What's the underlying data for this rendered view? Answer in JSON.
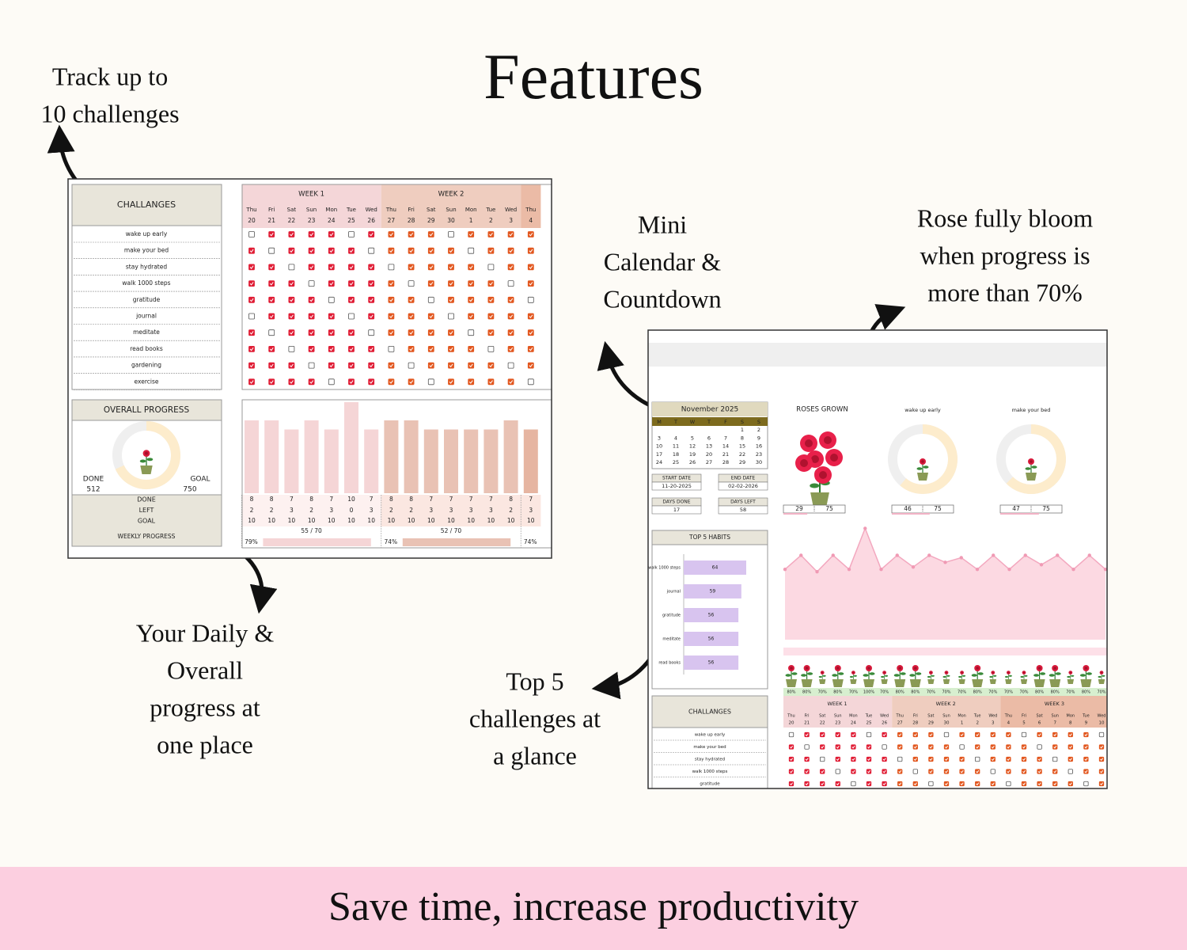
{
  "header": {
    "title": "Features"
  },
  "annotations": [
    {
      "lines": [
        "Track up to",
        "10 challenges"
      ]
    },
    {
      "lines": [
        "Mini",
        "Calendar &",
        "Countdown"
      ]
    },
    {
      "lines": [
        "Rose fully bloom",
        "when progress is",
        "more than 70%"
      ]
    },
    {
      "lines": [
        "Your Daily &",
        "Overall",
        "progress at",
        "one place"
      ]
    },
    {
      "lines": [
        "Top 5",
        "challenges at",
        "a glance"
      ]
    }
  ],
  "footer": {
    "text": "Save time, increase productivity"
  },
  "left_sheet": {
    "challenges_title": "CHALLANGES",
    "challenges": [
      "wake up early",
      "make your bed",
      "stay hydrated",
      "walk 1000 steps",
      "gratitude",
      "journal",
      "meditate",
      "read books",
      "gardening",
      "exercise"
    ],
    "weeks": [
      {
        "label": "WEEK 1",
        "days": [
          "Thu",
          "Fri",
          "Sat",
          "Sun",
          "Mon",
          "Tue",
          "Wed"
        ],
        "dates": [
          20,
          21,
          22,
          23,
          24,
          25,
          26
        ],
        "done": [
          8,
          8,
          7,
          8,
          7,
          10,
          7
        ],
        "left": [
          2,
          2,
          3,
          2,
          3,
          0,
          3
        ],
        "goal": [
          10,
          10,
          10,
          10,
          10,
          10,
          10
        ],
        "total": "55 / 70",
        "percent": "79%"
      },
      {
        "label": "WEEK 2",
        "days": [
          "Thu",
          "Fri",
          "Sat",
          "Sun",
          "Mon",
          "Tue",
          "Wed"
        ],
        "dates": [
          27,
          28,
          29,
          30,
          1,
          2,
          3
        ],
        "done": [
          8,
          8,
          7,
          7,
          7,
          7,
          8
        ],
        "left": [
          2,
          2,
          3,
          3,
          3,
          3,
          2
        ],
        "goal": [
          10,
          10,
          10,
          10,
          10,
          10,
          10
        ],
        "total": "52 / 70",
        "percent": "74%"
      },
      {
        "days": [
          "Thu"
        ],
        "dates": [
          4
        ],
        "done": [
          7
        ],
        "left": [
          3
        ],
        "goal": [
          10
        ],
        "percent": "74%"
      }
    ],
    "row_labels": [
      "DONE",
      "LEFT",
      "GOAL"
    ],
    "weekly_progress": "WEEKLY PROGRESS",
    "overall": {
      "title": "OVERALL PROGRESS",
      "done_label": "DONE",
      "done": 512,
      "goal_label": "GOAL",
      "goal": 750
    }
  },
  "right_sheet": {
    "calendar": {
      "title": "November 2025",
      "weekdays": [
        "M",
        "T",
        "W",
        "T",
        "F",
        "S",
        "S"
      ],
      "weeks": [
        [
          null,
          null,
          null,
          null,
          null,
          1,
          2
        ],
        [
          3,
          4,
          5,
          6,
          7,
          8,
          9
        ],
        [
          10,
          11,
          12,
          13,
          14,
          15,
          16
        ],
        [
          17,
          18,
          19,
          20,
          21,
          22,
          23
        ],
        [
          24,
          25,
          26,
          27,
          28,
          29,
          30
        ]
      ]
    },
    "info": [
      {
        "label": "START DATE",
        "value": "11-20-2025"
      },
      {
        "label": "END DATE",
        "value": "02-02-2026"
      },
      {
        "label": "DAYS DONE",
        "value": 17
      },
      {
        "label": "DAYS LEFT",
        "value": 58
      }
    ],
    "roses": {
      "title": "ROSES GROWN",
      "done": 29,
      "goal": 75
    },
    "habit_cards": [
      {
        "name": "wake up early",
        "done": 46,
        "goal": 75
      },
      {
        "name": "make your bed",
        "done": 47,
        "goal": 75
      }
    ],
    "top5": {
      "title": "TOP 5 HABITS",
      "categories": [
        "walk 1000 steps",
        "journal",
        "gratitude",
        "meditate",
        "read books"
      ],
      "values": [
        64,
        59,
        56,
        56,
        56
      ]
    },
    "trend": [
      60,
      72,
      58,
      72,
      60,
      95,
      60,
      72,
      62,
      72,
      66,
      70,
      60,
      72,
      60,
      72,
      64,
      72,
      60,
      72,
      60
    ],
    "percents": [
      "80%",
      "80%",
      "70%",
      "80%",
      "70%",
      "100%",
      "70%",
      "80%",
      "80%",
      "70%",
      "70%",
      "70%",
      "80%",
      "70%",
      "70%",
      "70%",
      "80%",
      "80%",
      "70%",
      "80%",
      "70%"
    ],
    "challenges_title": "CHALLANGES",
    "challenges": [
      "wake up early",
      "make your bed",
      "stay hydrated",
      "walk 1000 steps",
      "gratitude"
    ],
    "weeks": [
      {
        "label": "WEEK 1",
        "days": [
          "Thu",
          "Fri",
          "Sat",
          "Sun",
          "Mon",
          "Tue",
          "Wed"
        ],
        "dates": [
          20,
          21,
          22,
          23,
          24,
          25,
          26
        ]
      },
      {
        "label": "WEEK 2",
        "days": [
          "Thu",
          "Fri",
          "Sat",
          "Sun",
          "Mon",
          "Tue",
          "Wed"
        ],
        "dates": [
          27,
          28,
          29,
          30,
          1,
          2,
          3
        ]
      },
      {
        "label": "WEEK 3",
        "days": [
          "Thu",
          "Fri",
          "Sat",
          "Sun",
          "Mon",
          "Tue",
          "Wed"
        ],
        "dates": [
          4,
          5,
          6,
          7,
          8,
          9,
          10
        ]
      }
    ]
  }
}
